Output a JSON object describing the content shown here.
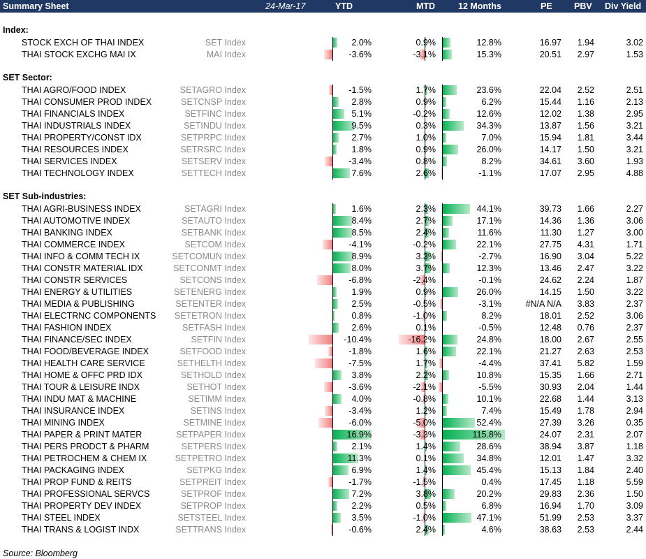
{
  "header": {
    "title": "Summary Sheet",
    "date": "24-Mar-17",
    "columns": [
      "YTD",
      "MTD",
      "12 Months",
      "PE",
      "PBV",
      "Div Yield"
    ]
  },
  "colors": {
    "header_bg": "#1f3864",
    "positive_bar": "#00b050",
    "negative_bar": "#f08080",
    "ticker_text": "#8a8a8a"
  },
  "sections": [
    {
      "title": "Index:",
      "rows": [
        {
          "name": "STOCK EXCH OF THAI INDEX",
          "ticker": "SET Index",
          "ytd": "2.0%",
          "mtd": "0.9%",
          "m12": "12.8%",
          "pe": "16.97",
          "pbv": "1.94",
          "dy": "3.02"
        },
        {
          "name": "THAI STOCK EXCHG MAI IX",
          "ticker": "MAI Index",
          "ytd": "-3.6%",
          "mtd": "-3.1%",
          "m12": "15.3%",
          "pe": "20.51",
          "pbv": "2.97",
          "dy": "1.53"
        }
      ]
    },
    {
      "title": "SET Sector:",
      "rows": [
        {
          "name": "THAI AGRO/FOOD INDEX",
          "ticker": "SETAGRO Index",
          "ytd": "-1.5%",
          "mtd": "1.7%",
          "m12": "23.6%",
          "pe": "22.04",
          "pbv": "2.52",
          "dy": "2.51"
        },
        {
          "name": "THAI CONSUMER PROD INDEX",
          "ticker": "SETCNSP Index",
          "ytd": "2.8%",
          "mtd": "0.9%",
          "m12": "6.2%",
          "pe": "15.44",
          "pbv": "1.16",
          "dy": "2.13"
        },
        {
          "name": "THAI FINANCIALS INDEX",
          "ticker": "SETFINC Index",
          "ytd": "5.1%",
          "mtd": "-0.2%",
          "m12": "12.6%",
          "pe": "12.02",
          "pbv": "1.38",
          "dy": "2.95"
        },
        {
          "name": "THAI INDUSTRIALS INDEX",
          "ticker": "SETINDU Index",
          "ytd": "9.5%",
          "mtd": "0.3%",
          "m12": "34.3%",
          "pe": "13.87",
          "pbv": "1.56",
          "dy": "3.21"
        },
        {
          "name": "THAI PROPERTY/CONST IDX",
          "ticker": "SETPRPC Index",
          "ytd": "2.7%",
          "mtd": "1.0%",
          "m12": "7.0%",
          "pe": "15.94",
          "pbv": "1.81",
          "dy": "3.44"
        },
        {
          "name": "THAI RESOURCES INDEX",
          "ticker": "SETRSRC Index",
          "ytd": "1.8%",
          "mtd": "0.9%",
          "m12": "26.0%",
          "pe": "14.17",
          "pbv": "1.50",
          "dy": "3.21"
        },
        {
          "name": "THAI SERVICES INDEX",
          "ticker": "SETSERV Index",
          "ytd": "-3.4%",
          "mtd": "0.8%",
          "m12": "8.2%",
          "pe": "34.61",
          "pbv": "3.60",
          "dy": "1.93"
        },
        {
          "name": "THAI TECHNOLOGY INDEX",
          "ticker": "SETTECH Index",
          "ytd": "7.6%",
          "mtd": "2.6%",
          "m12": "-1.1%",
          "pe": "17.07",
          "pbv": "2.95",
          "dy": "4.88"
        }
      ]
    },
    {
      "title": "SET Sub-industries:",
      "rows": [
        {
          "name": "THAI AGRI-BUSINESS INDEX",
          "ticker": "SETAGRI Index",
          "ytd": "1.6%",
          "mtd": "2.3%",
          "m12": "44.1%",
          "pe": "39.73",
          "pbv": "1.66",
          "dy": "2.27"
        },
        {
          "name": "THAI AUTOMOTIVE INDEX",
          "ticker": "SETAUTO Index",
          "ytd": "8.4%",
          "mtd": "2.7%",
          "m12": "17.1%",
          "pe": "14.36",
          "pbv": "1.36",
          "dy": "3.06"
        },
        {
          "name": "THAI BANKING INDEX",
          "ticker": "SETBANK Index",
          "ytd": "8.5%",
          "mtd": "2.4%",
          "m12": "11.6%",
          "pe": "11.30",
          "pbv": "1.27",
          "dy": "3.00"
        },
        {
          "name": "THAI COMMERCE INDEX",
          "ticker": "SETCOM Index",
          "ytd": "-4.1%",
          "mtd": "-0.2%",
          "m12": "22.1%",
          "pe": "27.75",
          "pbv": "4.31",
          "dy": "1.71"
        },
        {
          "name": "THAI INFO & COMM TECH IX",
          "ticker": "SETCOMUN Index",
          "ytd": "8.9%",
          "mtd": "3.3%",
          "m12": "-2.7%",
          "pe": "16.90",
          "pbv": "3.04",
          "dy": "5.22"
        },
        {
          "name": "THAI CONSTR MATERIAL IDX",
          "ticker": "SETCONMT Index",
          "ytd": "8.0%",
          "mtd": "3.7%",
          "m12": "12.3%",
          "pe": "13.46",
          "pbv": "2.47",
          "dy": "3.22"
        },
        {
          "name": "THAI CONSTR SERVICES",
          "ticker": "SETCONS Index",
          "ytd": "-6.8%",
          "mtd": "-2.4%",
          "m12": "-0.1%",
          "pe": "24.62",
          "pbv": "2.24",
          "dy": "1.87"
        },
        {
          "name": "THAI ENERGY & UTILITIES",
          "ticker": "SETENERG Index",
          "ytd": "1.9%",
          "mtd": "0.9%",
          "m12": "26.0%",
          "pe": "14.15",
          "pbv": "1.50",
          "dy": "3.22"
        },
        {
          "name": "THAI MEDIA & PUBLISHING",
          "ticker": "SETENTER Index",
          "ytd": "2.5%",
          "mtd": "-0.5%",
          "m12": "-3.1%",
          "pe": "#N/A N/A",
          "pbv": "3.83",
          "dy": "2.37"
        },
        {
          "name": "THAI ELECTRNC COMPONENTS",
          "ticker": "SETETRON Index",
          "ytd": "0.8%",
          "mtd": "-1.0%",
          "m12": "8.2%",
          "pe": "18.01",
          "pbv": "2.52",
          "dy": "3.06"
        },
        {
          "name": "THAI FASHION INDEX",
          "ticker": "SETFASH Index",
          "ytd": "2.6%",
          "mtd": "0.1%",
          "m12": "-0.5%",
          "pe": "12.48",
          "pbv": "0.76",
          "dy": "2.37"
        },
        {
          "name": "THAI FINANCE/SEC INDEX",
          "ticker": "SETFIN Index",
          "ytd": "-10.4%",
          "mtd": "-16.2%",
          "m12": "24.8%",
          "pe": "18.00",
          "pbv": "2.67",
          "dy": "2.55"
        },
        {
          "name": "THAI FOOD/BEVERAGE INDEX",
          "ticker": "SETFOOD Index",
          "ytd": "-1.8%",
          "mtd": "1.6%",
          "m12": "22.1%",
          "pe": "21.27",
          "pbv": "2.63",
          "dy": "2.53"
        },
        {
          "name": "THAI HEALTH CARE SERVICE",
          "ticker": "SETHELTH Index",
          "ytd": "-7.5%",
          "mtd": "1.7%",
          "m12": "-4.4%",
          "pe": "37.41",
          "pbv": "5.82",
          "dy": "1.59"
        },
        {
          "name": "THAI HOME & OFFC PRD IDX",
          "ticker": "SETHOLD Index",
          "ytd": "3.8%",
          "mtd": "2.2%",
          "m12": "10.8%",
          "pe": "15.35",
          "pbv": "1.66",
          "dy": "2.71"
        },
        {
          "name": "THAI TOUR & LEISURE INDX",
          "ticker": "SETHOT Index",
          "ytd": "-3.6%",
          "mtd": "-2.1%",
          "m12": "-5.5%",
          "pe": "30.93",
          "pbv": "2.04",
          "dy": "1.44"
        },
        {
          "name": "THAI INDU MAT & MACHINE",
          "ticker": "SETIMM Index",
          "ytd": "4.0%",
          "mtd": "-0.8%",
          "m12": "10.1%",
          "pe": "22.68",
          "pbv": "1.44",
          "dy": "3.13"
        },
        {
          "name": "THAI INSURANCE INDEX",
          "ticker": "SETINS Index",
          "ytd": "-3.4%",
          "mtd": "1.2%",
          "m12": "7.4%",
          "pe": "15.49",
          "pbv": "1.78",
          "dy": "2.94"
        },
        {
          "name": "THAI MINING INDEX",
          "ticker": "SETMINE Index",
          "ytd": "-6.0%",
          "mtd": "-5.0%",
          "m12": "52.4%",
          "pe": "27.39",
          "pbv": "3.26",
          "dy": "0.35"
        },
        {
          "name": "THAI PAPER & PRINT MATER",
          "ticker": "SETPAPER Index",
          "ytd": "16.9%",
          "mtd": "-3.3%",
          "m12": "115.8%",
          "pe": "24.07",
          "pbv": "2.31",
          "dy": "2.07"
        },
        {
          "name": "THAI PERS PRODCT & PHARM",
          "ticker": "SETPERS Index",
          "ytd": "2.1%",
          "mtd": "1.4%",
          "m12": "28.6%",
          "pe": "38.94",
          "pbv": "3.87",
          "dy": "1.18"
        },
        {
          "name": "THAI PETROCHEM & CHEM IX",
          "ticker": "SETPETRO Index",
          "ytd": "11.3%",
          "mtd": "0.1%",
          "m12": "34.8%",
          "pe": "12.01",
          "pbv": "1.47",
          "dy": "3.32"
        },
        {
          "name": "THAI PACKAGING INDEX",
          "ticker": "SETPKG Index",
          "ytd": "6.9%",
          "mtd": "1.4%",
          "m12": "45.4%",
          "pe": "15.13",
          "pbv": "1.84",
          "dy": "2.40"
        },
        {
          "name": "THAI PROP FUND & REITS",
          "ticker": "SETPREIT Index",
          "ytd": "-1.7%",
          "mtd": "-1.5%",
          "m12": "0.4%",
          "pe": "17.45",
          "pbv": "1.18",
          "dy": "5.59"
        },
        {
          "name": "THAI PROFESSIONAL SERVCS",
          "ticker": "SETPROF Index",
          "ytd": "7.2%",
          "mtd": "3.8%",
          "m12": "20.2%",
          "pe": "29.83",
          "pbv": "2.36",
          "dy": "1.50"
        },
        {
          "name": "THAI PROPERTY DEV INDEX",
          "ticker": "SETPROP Index",
          "ytd": "2.2%",
          "mtd": "0.5%",
          "m12": "6.8%",
          "pe": "16.94",
          "pbv": "1.70",
          "dy": "3.09"
        },
        {
          "name": "THAI STEEL INDEX",
          "ticker": "SETSTEEL Index",
          "ytd": "3.5%",
          "mtd": "-1.0%",
          "m12": "47.1%",
          "pe": "51.99",
          "pbv": "2.53",
          "dy": "3.37"
        },
        {
          "name": "THAI TRANS & LOGIST INDX",
          "ticker": "SETTRANS Index",
          "ytd": "-0.6%",
          "mtd": "2.4%",
          "m12": "4.6%",
          "pe": "38.63",
          "pbv": "2.53",
          "dy": "2.44"
        }
      ]
    }
  ],
  "source": "Source: Bloomberg"
}
